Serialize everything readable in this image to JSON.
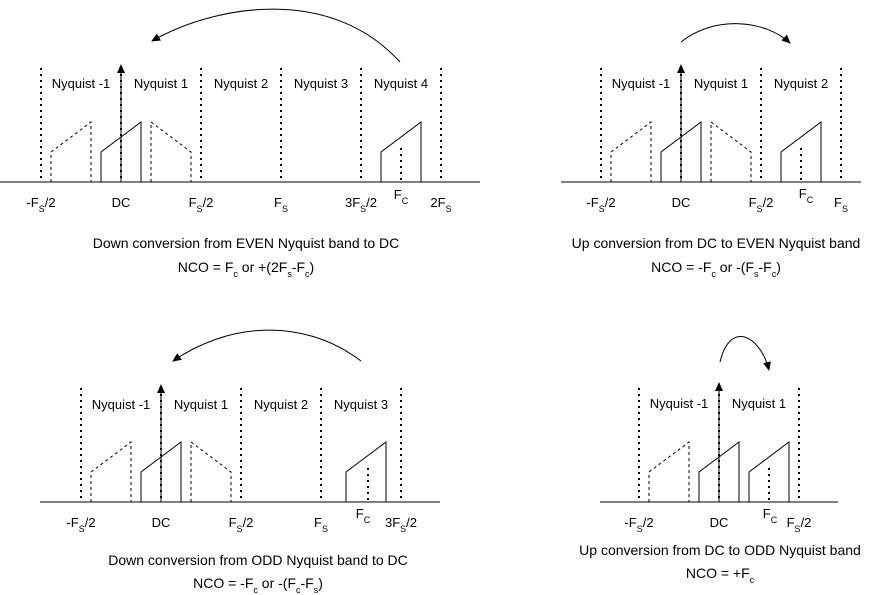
{
  "panels": [
    {
      "id": "even-down",
      "bands": [
        "Nyquist -1",
        "Nyquist 1",
        "Nyquist 2",
        "Nyquist 3",
        "Nyquist 4"
      ],
      "ticks": [
        {
          "main": "-F",
          "sub": "S",
          "tail": "/2"
        },
        {
          "main": "DC",
          "sub": "",
          "tail": ""
        },
        {
          "main": "F",
          "sub": "S",
          "tail": "/2"
        },
        {
          "main": "F",
          "sub": "S",
          "tail": ""
        },
        {
          "main": "3F",
          "sub": "S",
          "tail": "/2"
        },
        {
          "main": "2F",
          "sub": "S",
          "tail": ""
        }
      ],
      "fc_label": {
        "main": "F",
        "sub": "C"
      },
      "caption": "Down conversion from EVEN Nyquist band to DC",
      "formula": [
        {
          "t": "NCO = F",
          "s": false
        },
        {
          "t": "c",
          "s": true
        },
        {
          "t": " or +(2F",
          "s": false
        },
        {
          "t": "s",
          "s": true
        },
        {
          "t": "-F",
          "s": false
        },
        {
          "t": "c",
          "s": true
        },
        {
          "t": ")",
          "s": false
        }
      ]
    },
    {
      "id": "even-up",
      "bands": [
        "Nyquist -1",
        "Nyquist 1",
        "Nyquist 2"
      ],
      "ticks": [
        {
          "main": "-F",
          "sub": "S",
          "tail": "/2"
        },
        {
          "main": "DC",
          "sub": "",
          "tail": ""
        },
        {
          "main": "F",
          "sub": "S",
          "tail": "/2"
        },
        {
          "main": "F",
          "sub": "S",
          "tail": ""
        }
      ],
      "fc_label": {
        "main": "F",
        "sub": "C"
      },
      "caption": "Up conversion from DC to EVEN Nyquist band",
      "formula": [
        {
          "t": "NCO = -F",
          "s": false
        },
        {
          "t": "c",
          "s": true
        },
        {
          "t": " or -(F",
          "s": false
        },
        {
          "t": "s",
          "s": true
        },
        {
          "t": "-F",
          "s": false
        },
        {
          "t": "c",
          "s": true
        },
        {
          "t": ")",
          "s": false
        }
      ]
    },
    {
      "id": "odd-down",
      "bands": [
        "Nyquist -1",
        "Nyquist 1",
        "Nyquist 2",
        "Nyquist 3"
      ],
      "ticks": [
        {
          "main": "-F",
          "sub": "S",
          "tail": "/2"
        },
        {
          "main": "DC",
          "sub": "",
          "tail": ""
        },
        {
          "main": "F",
          "sub": "S",
          "tail": "/2"
        },
        {
          "main": "F",
          "sub": "S",
          "tail": ""
        },
        {
          "main": "3F",
          "sub": "S",
          "tail": "/2"
        }
      ],
      "fc_label": {
        "main": "F",
        "sub": "C"
      },
      "caption": "Down conversion from ODD Nyquist band to DC",
      "formula": [
        {
          "t": "NCO = -F",
          "s": false
        },
        {
          "t": "c",
          "s": true
        },
        {
          "t": " or -(F",
          "s": false
        },
        {
          "t": "c",
          "s": true
        },
        {
          "t": "-F",
          "s": false
        },
        {
          "t": "s",
          "s": true
        },
        {
          "t": ")",
          "s": false
        }
      ]
    },
    {
      "id": "odd-up",
      "bands": [
        "Nyquist -1",
        "Nyquist 1"
      ],
      "ticks": [
        {
          "main": "-F",
          "sub": "S",
          "tail": "/2"
        },
        {
          "main": "DC",
          "sub": "",
          "tail": ""
        },
        {
          "main": "F",
          "sub": "S",
          "tail": "/2"
        }
      ],
      "fc_label": {
        "main": "F",
        "sub": "C"
      },
      "caption": "Up conversion from DC to ODD Nyquist band",
      "formula": [
        {
          "t": "NCO = +F",
          "s": false
        },
        {
          "t": "c",
          "s": true
        }
      ]
    }
  ]
}
